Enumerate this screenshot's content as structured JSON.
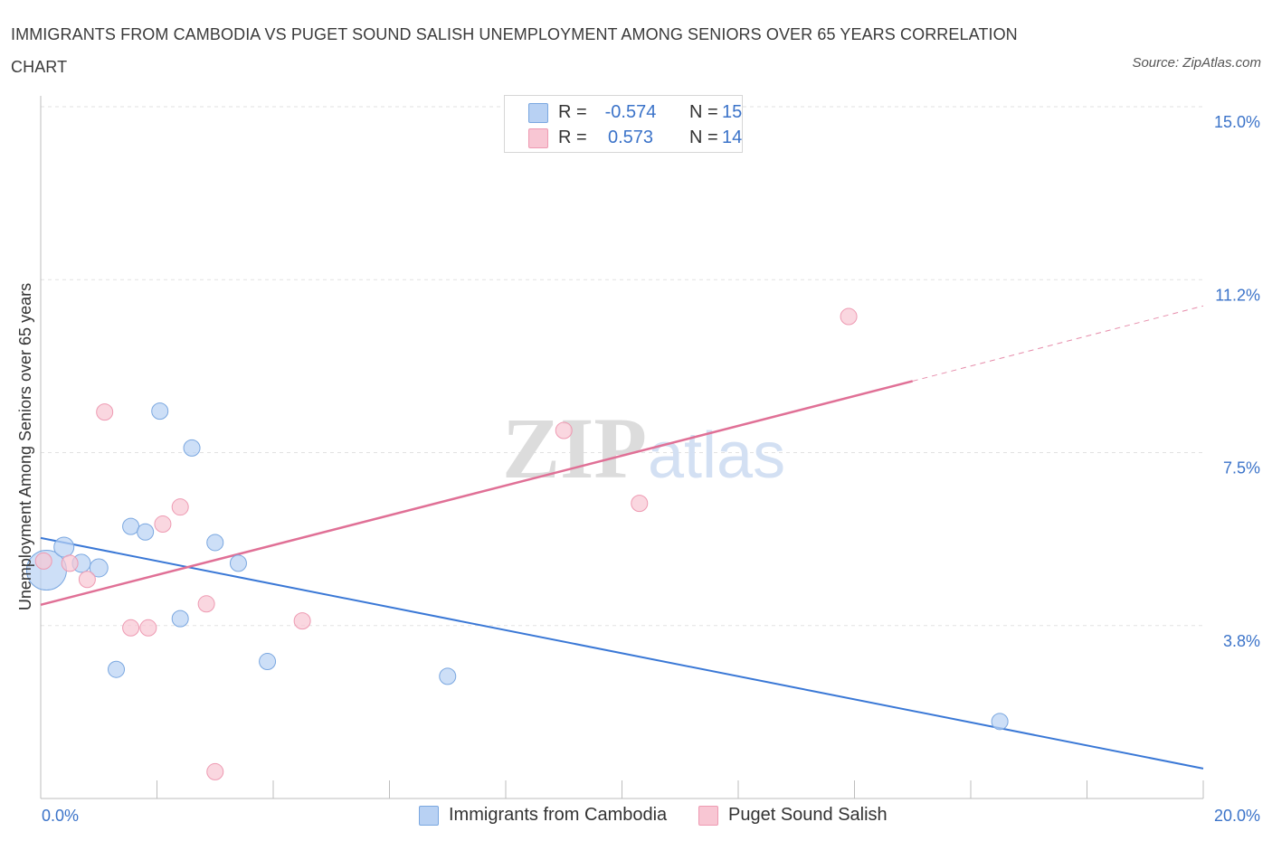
{
  "header": {
    "title": "IMMIGRANTS FROM CAMBODIA VS PUGET SOUND SALISH UNEMPLOYMENT AMONG SENIORS OVER 65 YEARS CORRELATION CHART",
    "source": "Source: ZipAtlas.com"
  },
  "watermark": {
    "zip": "ZIP",
    "atlas": "atlas"
  },
  "legend": {
    "r_label": "R =",
    "n_label": "N =",
    "series": [
      {
        "r": "-0.574",
        "n": "15"
      },
      {
        "r": "0.573",
        "n": "14"
      }
    ]
  },
  "bottom_legend": [
    {
      "label": "Immigrants from Cambodia"
    },
    {
      "label": "Puget Sound Salish"
    }
  ],
  "colors": {
    "blue_fill": "#b8d1f3",
    "blue_stroke": "#7aa7e0",
    "blue_line": "#3a78d6",
    "pink_fill": "#f8c6d3",
    "pink_stroke": "#ee9ab2",
    "pink_line": "#e07096",
    "accent_text": "#3b73c9"
  },
  "chart_data": {
    "type": "scatter",
    "title": "IMMIGRANTS FROM CAMBODIA VS PUGET SOUND SALISH UNEMPLOYMENT AMONG SENIORS OVER 65 YEARS CORRELATION CHART",
    "xlabel": "",
    "ylabel": "Unemployment Among Seniors over 65 years",
    "xlim": [
      0,
      20
    ],
    "ylim": [
      0,
      15
    ],
    "x_tick_labels": [
      "0.0%",
      "20.0%"
    ],
    "y_ticks": [
      3.75,
      7.5,
      11.25,
      15
    ],
    "y_tick_labels": [
      "3.8%",
      "7.5%",
      "11.2%",
      "15.0%"
    ],
    "grid": true,
    "legend_position": "top-center",
    "series": [
      {
        "name": "Immigrants from Cambodia",
        "r": -0.574,
        "n": 15,
        "points": [
          [
            0.1,
            4.95,
            22
          ],
          [
            0.4,
            5.45,
            11
          ],
          [
            0.7,
            5.1,
            10
          ],
          [
            1.0,
            5.0,
            10
          ],
          [
            1.3,
            2.8,
            9
          ],
          [
            1.55,
            5.9,
            9
          ],
          [
            1.8,
            5.78,
            9
          ],
          [
            2.05,
            8.4,
            9
          ],
          [
            2.4,
            3.9,
            9
          ],
          [
            2.6,
            7.6,
            9
          ],
          [
            3.0,
            5.55,
            9
          ],
          [
            3.4,
            5.1,
            9
          ],
          [
            3.9,
            2.97,
            9
          ],
          [
            7.0,
            2.65,
            9
          ],
          [
            16.5,
            1.67,
            9
          ]
        ],
        "trend": {
          "x0": 0,
          "y0": 5.65,
          "x1": 20,
          "y1": 0.65
        }
      },
      {
        "name": "Puget Sound Salish",
        "r": 0.573,
        "n": 14,
        "points": [
          [
            0.05,
            5.15,
            9
          ],
          [
            0.5,
            5.1,
            9
          ],
          [
            0.8,
            4.75,
            9
          ],
          [
            1.1,
            8.38,
            9
          ],
          [
            1.55,
            3.7,
            9
          ],
          [
            1.85,
            3.7,
            9
          ],
          [
            2.1,
            5.95,
            9
          ],
          [
            2.4,
            6.32,
            9
          ],
          [
            2.85,
            4.22,
            9
          ],
          [
            3.0,
            0.58,
            9
          ],
          [
            4.5,
            3.85,
            9
          ],
          [
            9.0,
            7.98,
            9
          ],
          [
            10.3,
            6.4,
            9
          ],
          [
            13.9,
            10.45,
            9
          ]
        ],
        "trend": {
          "x0": 0,
          "y0": 4.2,
          "x1": 15,
          "y1": 9.05,
          "dash_to_x": 20,
          "dash_to_y": 10.68
        }
      }
    ]
  }
}
